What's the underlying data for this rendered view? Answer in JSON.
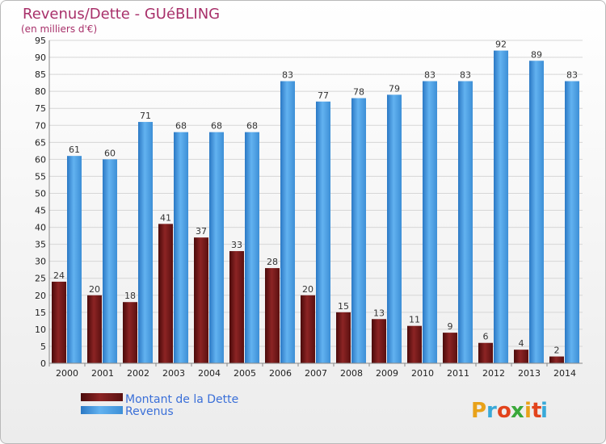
{
  "chart_data": {
    "type": "bar",
    "title": "Revenus/Dette - GUéBLING",
    "subtitle": "(en milliers d'€)",
    "categories": [
      "2000",
      "2001",
      "2002",
      "2003",
      "2004",
      "2005",
      "2006",
      "2007",
      "2008",
      "2009",
      "2010",
      "2011",
      "2012",
      "2013",
      "2014"
    ],
    "series": [
      {
        "name": "Montant de la Dette",
        "color": "#7a1818",
        "values": [
          24,
          20,
          18,
          41,
          37,
          33,
          28,
          20,
          15,
          13,
          11,
          9,
          6,
          4,
          2
        ]
      },
      {
        "name": "Revenus",
        "color": "#4d9fe3",
        "values": [
          61,
          60,
          71,
          68,
          68,
          68,
          83,
          77,
          78,
          79,
          83,
          83,
          92,
          89,
          83
        ]
      }
    ],
    "ylim": [
      0,
      95
    ],
    "yticks": [
      0,
      5,
      10,
      15,
      20,
      25,
      30,
      35,
      40,
      45,
      50,
      55,
      60,
      65,
      70,
      75,
      80,
      85,
      90,
      95
    ],
    "grid": true,
    "legend": "bottom-left"
  },
  "logo": {
    "letters": [
      "P",
      "r",
      "o",
      "x",
      "i",
      "t",
      "i"
    ],
    "colors": [
      "#e8a21a",
      "#39a9d8",
      "#e2431c",
      "#3aa83a",
      "#e8a21a",
      "#e2431c",
      "#39a9d8"
    ]
  }
}
